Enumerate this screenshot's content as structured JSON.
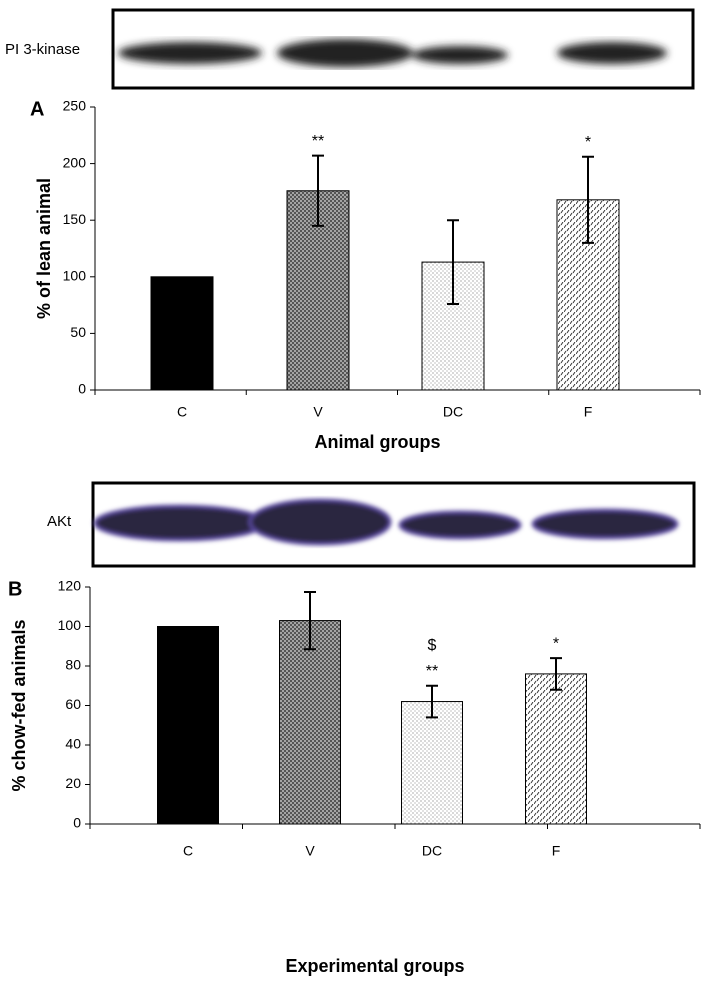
{
  "chart_data": [
    {
      "type": "bar",
      "panel": "A",
      "blot_label": "PI 3-kinase",
      "categories": [
        "C",
        "V",
        "DC",
        "F"
      ],
      "values": [
        100,
        176,
        113,
        168
      ],
      "errors": [
        null,
        31,
        37,
        38
      ],
      "ylim": [
        0,
        250
      ],
      "yticks": [
        0,
        50,
        100,
        150,
        200,
        250
      ],
      "xlabel": "Animal groups",
      "ylabel": "% of lean animal",
      "annotations": [
        {
          "category": "V",
          "text": "**"
        },
        {
          "category": "F",
          "text": "*"
        }
      ]
    },
    {
      "type": "bar",
      "panel": "B",
      "blot_label": "AKt",
      "categories": [
        "C",
        "V",
        "DC",
        "F"
      ],
      "values": [
        100,
        103,
        62,
        76
      ],
      "errors": [
        null,
        14.5,
        8,
        8
      ],
      "ylim": [
        0,
        120
      ],
      "yticks": [
        0,
        20,
        40,
        60,
        80,
        100,
        120
      ],
      "xlabel": "Experimental groups",
      "ylabel": "% chow-fed animals",
      "annotations": [
        {
          "category": "DC",
          "text": "**"
        },
        {
          "category": "DC",
          "text": "$"
        },
        {
          "category": "F",
          "text": "*"
        }
      ]
    }
  ]
}
